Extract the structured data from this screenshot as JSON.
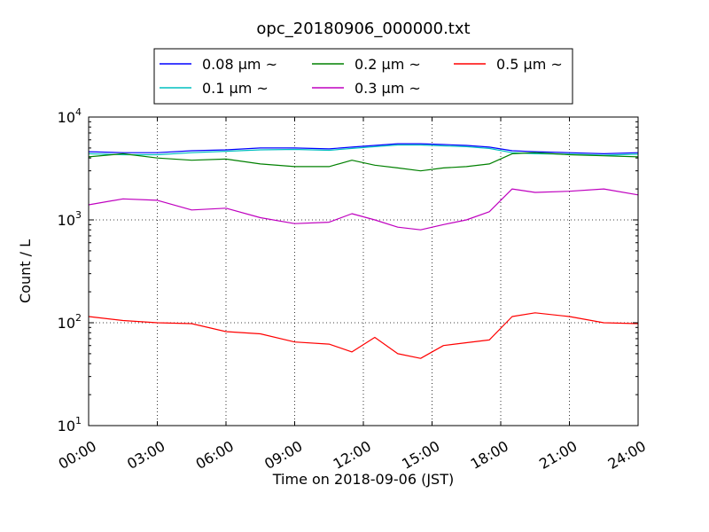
{
  "chart_data": {
    "type": "line",
    "title": "opc_20180906_000000.txt",
    "xlabel": "Time on 2018-09-06 (JST)",
    "ylabel": "Count / L",
    "x_range_hours": [
      0,
      24
    ],
    "ylim": [
      10,
      10000
    ],
    "yscale": "log",
    "grid": true,
    "legend_position": "top (above plot)",
    "x_tick_labels": [
      "00:00",
      "03:00",
      "06:00",
      "09:00",
      "12:00",
      "15:00",
      "18:00",
      "21:00",
      "24:00"
    ],
    "y_tick_labels": [
      {
        "base": "10",
        "exp": "1"
      },
      {
        "base": "10",
        "exp": "2"
      },
      {
        "base": "10",
        "exp": "3"
      },
      {
        "base": "10",
        "exp": "4"
      }
    ],
    "legend": [
      {
        "label": "0.08 μm ~",
        "color": "#0000ff"
      },
      {
        "label": "0.2 μm ~",
        "color": "#008000"
      },
      {
        "label": "0.5 μm ~",
        "color": "#ff0000"
      },
      {
        "label": "0.1 μm ~",
        "color": "#00bfbf"
      },
      {
        "label": "0.3 μm ~",
        "color": "#bf00bf"
      }
    ],
    "x_hours": [
      0,
      1.5,
      3,
      4.5,
      6,
      7.5,
      9,
      10.5,
      11.5,
      12.5,
      13.5,
      14.5,
      15.5,
      16.5,
      17.5,
      18.5,
      19.5,
      21,
      22.5,
      24
    ],
    "series": [
      {
        "name": "0.08 μm ~",
        "color": "#0000ff",
        "values": [
          4600,
          4500,
          4500,
          4700,
          4800,
          5000,
          5000,
          4900,
          5100,
          5300,
          5500,
          5500,
          5400,
          5300,
          5100,
          4700,
          4600,
          4500,
          4400,
          4500
        ]
      },
      {
        "name": "0.1 μm ~",
        "color": "#00bfbf",
        "values": [
          4400,
          4300,
          4300,
          4500,
          4650,
          4800,
          4850,
          4750,
          4950,
          5150,
          5350,
          5350,
          5250,
          5150,
          4950,
          4500,
          4400,
          4350,
          4250,
          4350
        ]
      },
      {
        "name": "0.2 μm ~",
        "color": "#008000",
        "values": [
          4100,
          4400,
          4000,
          3800,
          3900,
          3500,
          3300,
          3300,
          3800,
          3400,
          3200,
          3000,
          3200,
          3300,
          3500,
          4400,
          4500,
          4300,
          4200,
          4100
        ]
      },
      {
        "name": "0.3 μm ~",
        "color": "#bf00bf",
        "values": [
          1400,
          1600,
          1550,
          1250,
          1300,
          1050,
          920,
          950,
          1150,
          1000,
          850,
          800,
          900,
          1000,
          1200,
          2000,
          1850,
          1900,
          2000,
          1750
        ]
      },
      {
        "name": "0.5 μm ~",
        "color": "#ff0000",
        "values": [
          115,
          105,
          100,
          98,
          82,
          78,
          65,
          62,
          52,
          72,
          50,
          45,
          60,
          64,
          68,
          115,
          125,
          115,
          100,
          98
        ]
      }
    ]
  }
}
